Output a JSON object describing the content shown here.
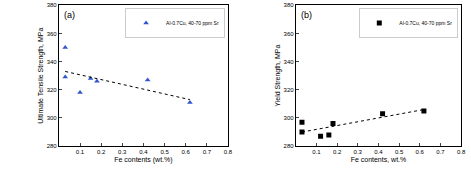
{
  "chart_data": [
    {
      "type": "scatter",
      "title": "(a)",
      "x_label": "Fe contents (wt.%)",
      "y_label": "Ultimate Tensile Strength, MPa",
      "xlim": [
        0,
        0.8
      ],
      "xticks": [
        0.1,
        0.2,
        0.3,
        0.4,
        0.5,
        0.6,
        0.7,
        0.8
      ],
      "ylim": [
        280,
        380
      ],
      "yticks": [
        280,
        300,
        320,
        340,
        360,
        380
      ],
      "grid": false,
      "legend": "upper right",
      "series": [
        {
          "name": "Al-0.7Cu, 40-70 ppm Sr",
          "color": "#3355cc",
          "marker": "triangle",
          "type": "scatter",
          "x": [
            0.03,
            0.03,
            0.1,
            0.15,
            0.18,
            0.42,
            0.62
          ],
          "values": [
            350,
            329,
            318,
            328,
            326,
            327,
            311
          ]
        },
        {
          "type": "line",
          "color": "#000000",
          "line_style": "dot",
          "x": [
            0.03,
            0.62
          ],
          "values": [
            333,
            313
          ]
        }
      ]
    },
    {
      "type": "scatter",
      "title": "(b)",
      "x_label": "Fe contents, wt.%",
      "y_label": "Yield Strength, MPa",
      "xlim": [
        0,
        0.8
      ],
      "xticks": [
        0.1,
        0.2,
        0.3,
        0.4,
        0.5,
        0.6,
        0.7,
        0.8
      ],
      "ylim": [
        280,
        380
      ],
      "yticks": [
        280,
        300,
        320,
        340,
        360,
        380
      ],
      "grid": false,
      "legend": "upper right",
      "series": [
        {
          "name": "Al-0.7Cu, 40-70 ppm Sr",
          "color": "#000000",
          "marker": "square",
          "type": "scatter",
          "x": [
            0.03,
            0.03,
            0.12,
            0.16,
            0.18,
            0.42,
            0.62
          ],
          "values": [
            297,
            290,
            287,
            288,
            296,
            303,
            305
          ]
        },
        {
          "type": "line",
          "color": "#000000",
          "line_style": "dot",
          "x": [
            0.03,
            0.62
          ],
          "values": [
            290,
            306
          ]
        }
      ]
    }
  ]
}
